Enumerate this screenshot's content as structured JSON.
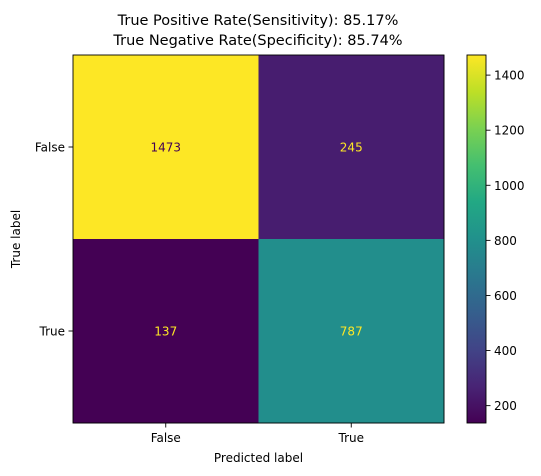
{
  "chart_data": {
    "type": "heatmap",
    "title_lines": [
      "True Positive Rate(Sensitivity): 85.17%",
      "True Negative Rate(Specificity): 85.74%"
    ],
    "xlabel": "Predicted label",
    "ylabel": "True label",
    "x_categories": [
      "False",
      "True"
    ],
    "y_categories": [
      "False",
      "True"
    ],
    "values": [
      [
        1473,
        245
      ],
      [
        137,
        787
      ]
    ],
    "colormap": "viridis",
    "colorbar": {
      "range": [
        137,
        1473
      ],
      "ticks": [
        200,
        400,
        600,
        800,
        1000,
        1200,
        1400
      ]
    },
    "annotation_colors": {
      "on_dark": "#fde725",
      "on_light": "#440154"
    }
  }
}
